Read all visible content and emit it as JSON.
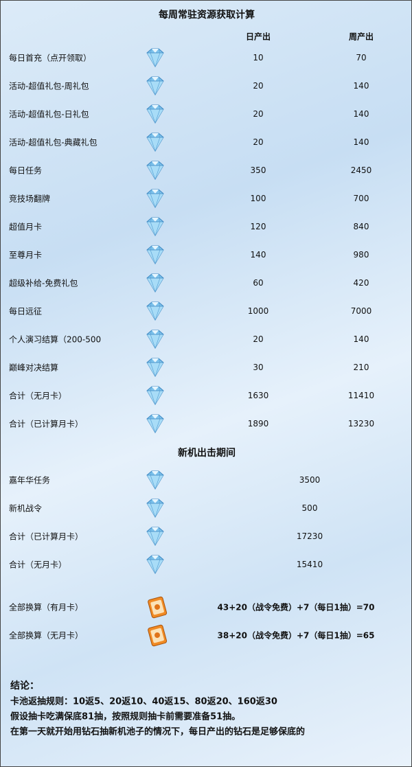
{
  "title": "每周常驻资源获取计算",
  "table": {
    "header": [
      "日产出",
      "周产出"
    ],
    "rows": [
      [
        "每日首充（点开领取）",
        10,
        70
      ],
      [
        "活动-超值礼包-周礼包",
        20,
        140
      ],
      [
        "活动-超值礼包-日礼包",
        20,
        140
      ],
      [
        "活动-超值礼包-典藏礼包",
        20,
        140
      ],
      [
        "每日任务",
        350,
        2450
      ],
      [
        "竞技场翻牌",
        100,
        700
      ],
      [
        "超值月卡",
        120,
        840
      ],
      [
        "至尊月卡",
        140,
        980
      ],
      [
        "超级补给-免费礼包",
        60,
        420
      ],
      [
        "每日远征",
        1000,
        7000
      ],
      [
        "个人演习结算（200-500",
        20,
        140
      ],
      [
        "巅峰对决结算",
        30,
        210
      ],
      [
        "合计（无月卡）",
        1630,
        11410
      ],
      [
        "合计（已计算月卡）",
        1890,
        13230
      ]
    ]
  },
  "section2": {
    "title": "新机出击期间",
    "rows": [
      [
        "嘉年华任务",
        3500
      ],
      [
        "新机战令",
        500
      ],
      [
        "合计（已计算月卡）",
        17230
      ],
      [
        "合计（无月卡）",
        15410
      ]
    ]
  },
  "conversion": {
    "rows": [
      [
        "全部换算（有月卡）",
        "43+20（战令免费）+7（每日1抽）=70"
      ],
      [
        "全部换算（无月卡）",
        "38+20（战令免费）+7（每日1抽）=65"
      ]
    ]
  },
  "conclusion": {
    "title": "结论：",
    "lines": [
      "卡池返抽规则：10返5、20返10、40返15、80返20、160返30",
      "假设抽卡吃满保底81抽，按照规则抽卡前需要准备51抽。",
      "在第一天就开始用钻石抽新机池子的情况下，每日产出的钻石是足够保底的"
    ]
  }
}
